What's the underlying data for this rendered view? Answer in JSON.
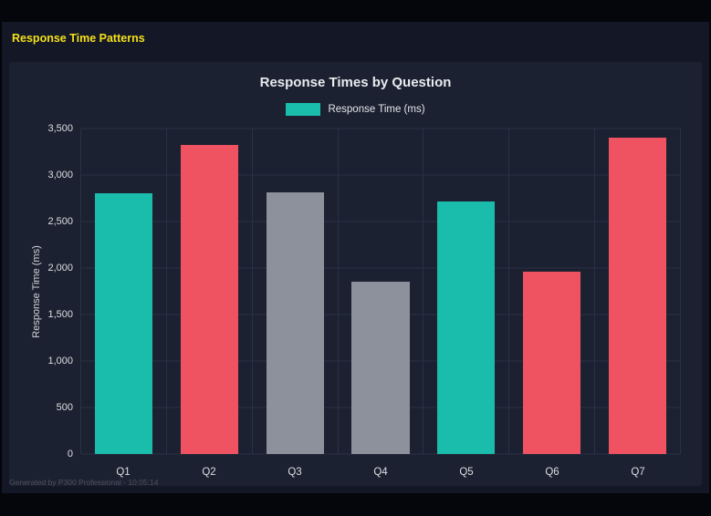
{
  "page": {
    "title": "Response Time Patterns",
    "footer": "Generated by P300 Professional - 10:05:14"
  },
  "chart": {
    "title": "Response Times by Question",
    "legend_label": "Response Time (ms)",
    "y_axis_label": "Response Time (ms)"
  },
  "colors": {
    "accent_yellow": "#f5e01a",
    "teal": "#1abcac",
    "red": "#ef5261",
    "gray": "#8c919b",
    "grid": "#2a3143",
    "panel_bg": "#1c2131",
    "page_bg": "#131726"
  },
  "chart_data": {
    "type": "bar",
    "title": "Response Times by Question",
    "categories": [
      "Q1",
      "Q2",
      "Q3",
      "Q4",
      "Q5",
      "Q6",
      "Q7"
    ],
    "values": [
      2800,
      3320,
      2810,
      1850,
      2720,
      1960,
      3400
    ],
    "bar_colors": [
      "#1abcac",
      "#ef5261",
      "#8c919b",
      "#8c919b",
      "#1abcac",
      "#ef5261",
      "#ef5261"
    ],
    "xlabel": "",
    "ylabel": "Response Time (ms)",
    "ylim": [
      0,
      3500
    ],
    "yticks": [
      0,
      500,
      1000,
      1500,
      2000,
      2500,
      3000,
      3500
    ],
    "ytick_labels": [
      "0",
      "500",
      "1,000",
      "1,500",
      "2,000",
      "2,500",
      "3,000",
      "3,500"
    ],
    "legend": [
      {
        "label": "Response Time (ms)",
        "color": "#1abcac"
      }
    ],
    "legend_position": "top",
    "grid": true
  }
}
